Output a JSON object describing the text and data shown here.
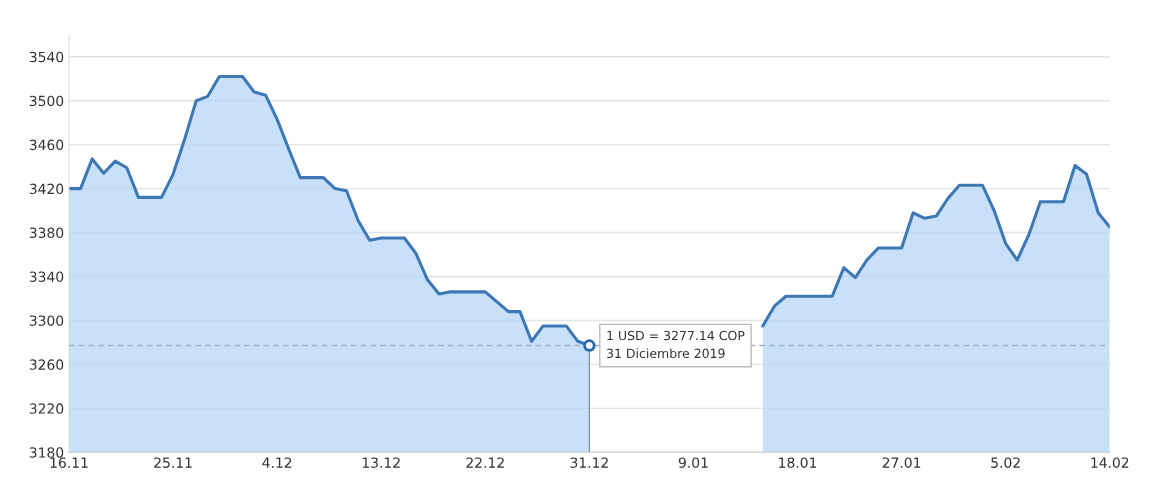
{
  "chart_data": {
    "type": "area",
    "x": [
      "2019-11-16",
      "2019-11-17",
      "2019-11-18",
      "2019-11-19",
      "2019-11-20",
      "2019-11-21",
      "2019-11-22",
      "2019-11-24",
      "2019-11-25",
      "2019-11-26",
      "2019-11-27",
      "2019-11-28",
      "2019-11-29",
      "2019-12-01",
      "2019-12-02",
      "2019-12-03",
      "2019-12-04",
      "2019-12-05",
      "2019-12-06",
      "2019-12-08",
      "2019-12-09",
      "2019-12-10",
      "2019-12-11",
      "2019-12-12",
      "2019-12-13",
      "2019-12-15",
      "2019-12-16",
      "2019-12-17",
      "2019-12-18",
      "2019-12-19",
      "2019-12-22",
      "2019-12-24",
      "2019-12-25",
      "2019-12-26",
      "2019-12-27",
      "2019-12-29",
      "2019-12-30",
      "2019-12-31",
      "2020-01-07",
      "2020-01-15",
      "2020-01-16",
      "2020-01-17",
      "2020-01-21",
      "2020-01-22",
      "2020-01-23",
      "2020-01-24",
      "2020-01-25",
      "2020-01-27",
      "2020-01-28",
      "2020-01-29",
      "2020-01-30",
      "2020-01-31",
      "2020-02-01",
      "2020-02-03",
      "2020-02-04",
      "2020-02-05",
      "2020-02-06",
      "2020-02-07",
      "2020-02-08",
      "2020-02-10",
      "2020-02-11",
      "2020-02-12",
      "2020-02-13",
      "2020-02-14"
    ],
    "series": [
      {
        "color": "#3d78b4",
        "values": [
          3420,
          3420,
          3447,
          3434,
          3445,
          3439,
          3412,
          3412,
          3433,
          3465,
          3500,
          3504,
          3522,
          3522,
          3508,
          3505,
          3483,
          3456,
          3430,
          3430,
          3420,
          3418,
          3391,
          3373,
          3375,
          3375,
          3361,
          3337,
          3324,
          3326,
          3326,
          3308,
          3308,
          3281,
          3295,
          3295,
          3281,
          3277.14,
          null,
          3295,
          3313,
          3322,
          3322,
          3348,
          3339,
          3355,
          3366,
          3366,
          3398,
          3393,
          3395,
          3411,
          3423,
          3423,
          3400,
          3370,
          3355,
          3378,
          3408,
          3408,
          3441,
          3433,
          3398,
          3385
        ]
      }
    ],
    "xlim": [
      "2019-11-16",
      "2020-02-14"
    ],
    "xticks": [
      {
        "value": "2019-11-16",
        "label": "16.11"
      },
      {
        "value": "2019-11-25",
        "label": "25.11"
      },
      {
        "value": "2019-12-04",
        "label": "4.12"
      },
      {
        "value": "2019-12-13",
        "label": "13.12"
      },
      {
        "value": "2019-12-22",
        "label": "22.12"
      },
      {
        "value": "2019-12-31",
        "label": "31.12"
      },
      {
        "value": "2020-01-09",
        "label": "9.01"
      },
      {
        "value": "2020-01-18",
        "label": "18.01"
      },
      {
        "value": "2020-01-27",
        "label": "27.01"
      },
      {
        "value": "2020-02-05",
        "label": "5.02"
      },
      {
        "value": "2020-02-14",
        "label": "14.02"
      }
    ],
    "ylim": [
      3180,
      3560
    ],
    "yticks": [
      3180,
      3220,
      3260,
      3300,
      3340,
      3380,
      3420,
      3460,
      3500,
      3540
    ],
    "grid": "y",
    "ref_lines": [
      {
        "axis": "y",
        "value": 3277.14,
        "color": "#9db3c8",
        "line_style": "dashed"
      },
      {
        "axis": "x",
        "value": "2019-12-31",
        "color": "#7f93a6",
        "line_style": "solid"
      }
    ],
    "annotations": [
      {
        "text": "1 USD = 3277.14 COP\n31 Diciembre 2019",
        "x": "2019-12-31",
        "y": 3277.14
      }
    ]
  }
}
